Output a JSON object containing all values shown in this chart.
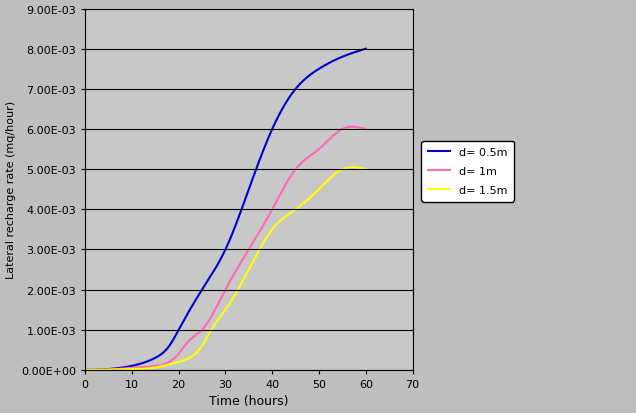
{
  "title": "",
  "xlabel": "Time (hours)",
  "ylabel": "Lateral recharge rate (mq/hour)",
  "xlim": [
    0,
    70
  ],
  "ylim": [
    0,
    0.009
  ],
  "xticks": [
    0,
    10,
    20,
    30,
    40,
    50,
    60,
    70
  ],
  "yticks": [
    0.0,
    0.001,
    0.002,
    0.003,
    0.004,
    0.005,
    0.006,
    0.007,
    0.008,
    0.009
  ],
  "ytick_labels": [
    "0.00E+00",
    "1.00E-03",
    "2.00E-03",
    "3.00E-03",
    "4.00E-03",
    "5.00E-03",
    "6.00E-03",
    "7.00E-03",
    "8.00E-03",
    "9.00E-03"
  ],
  "series": [
    {
      "label": "d= 0.5m",
      "color": "#0000CD",
      "t_points": [
        0,
        5,
        10,
        15,
        18,
        20,
        25,
        30,
        35,
        40,
        45,
        50,
        55,
        60
      ],
      "q_points": [
        0,
        2e-05,
        0.0001,
        0.0003,
        0.0006,
        0.001,
        0.002,
        0.003,
        0.0045,
        0.006,
        0.007,
        0.0075,
        0.0078,
        0.008
      ]
    },
    {
      "label": "d= 1m",
      "color": "#FF69B4",
      "t_points": [
        0,
        5,
        10,
        15,
        20,
        22,
        25,
        30,
        35,
        40,
        45,
        50,
        55,
        60
      ],
      "q_points": [
        0,
        1e-05,
        5e-05,
        0.0001,
        0.0004,
        0.0007,
        0.001,
        0.002,
        0.003,
        0.004,
        0.005,
        0.0055,
        0.006,
        0.006
      ]
    },
    {
      "label": "d= 1.5m",
      "color": "#FFFF00",
      "t_points": [
        0,
        5,
        10,
        15,
        20,
        25,
        27,
        30,
        35,
        40,
        45,
        50,
        55,
        60
      ],
      "q_points": [
        0,
        5e-06,
        2e-05,
        6e-05,
        0.0002,
        0.0006,
        0.001,
        0.0015,
        0.0025,
        0.0035,
        0.004,
        0.0045,
        0.005,
        0.005
      ]
    }
  ],
  "fig_bg_color": "#BEBEBE",
  "plot_bg_color": "#C8C8C8",
  "grid_color": "#000000",
  "fig_width": 6.36,
  "fig_height": 4.14,
  "fig_dpi": 100
}
